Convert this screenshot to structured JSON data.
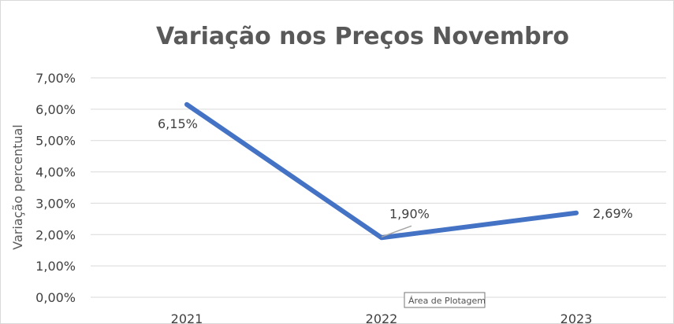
{
  "chart_data": {
    "type": "line",
    "title": "Variação nos Preços Novembro",
    "xlabel": "",
    "ylabel": "Variação percentual",
    "categories": [
      "2021",
      "2022",
      "2023"
    ],
    "series": [
      {
        "values": [
          6.15,
          1.9,
          2.69
        ],
        "labels": [
          "6,15%",
          "1,90%",
          "2,69%"
        ],
        "color": "#4472c4"
      }
    ],
    "ylim": [
      0,
      7
    ],
    "yticks": [
      0,
      1,
      2,
      3,
      4,
      5,
      6,
      7
    ],
    "ytick_labels": [
      "0,00%",
      "1,00%",
      "2,00%",
      "3,00%",
      "4,00%",
      "5,00%",
      "6,00%",
      "7,00%"
    ],
    "grid": true,
    "legend": "none"
  },
  "tooltip": {
    "text": "Área de Plotagem"
  }
}
